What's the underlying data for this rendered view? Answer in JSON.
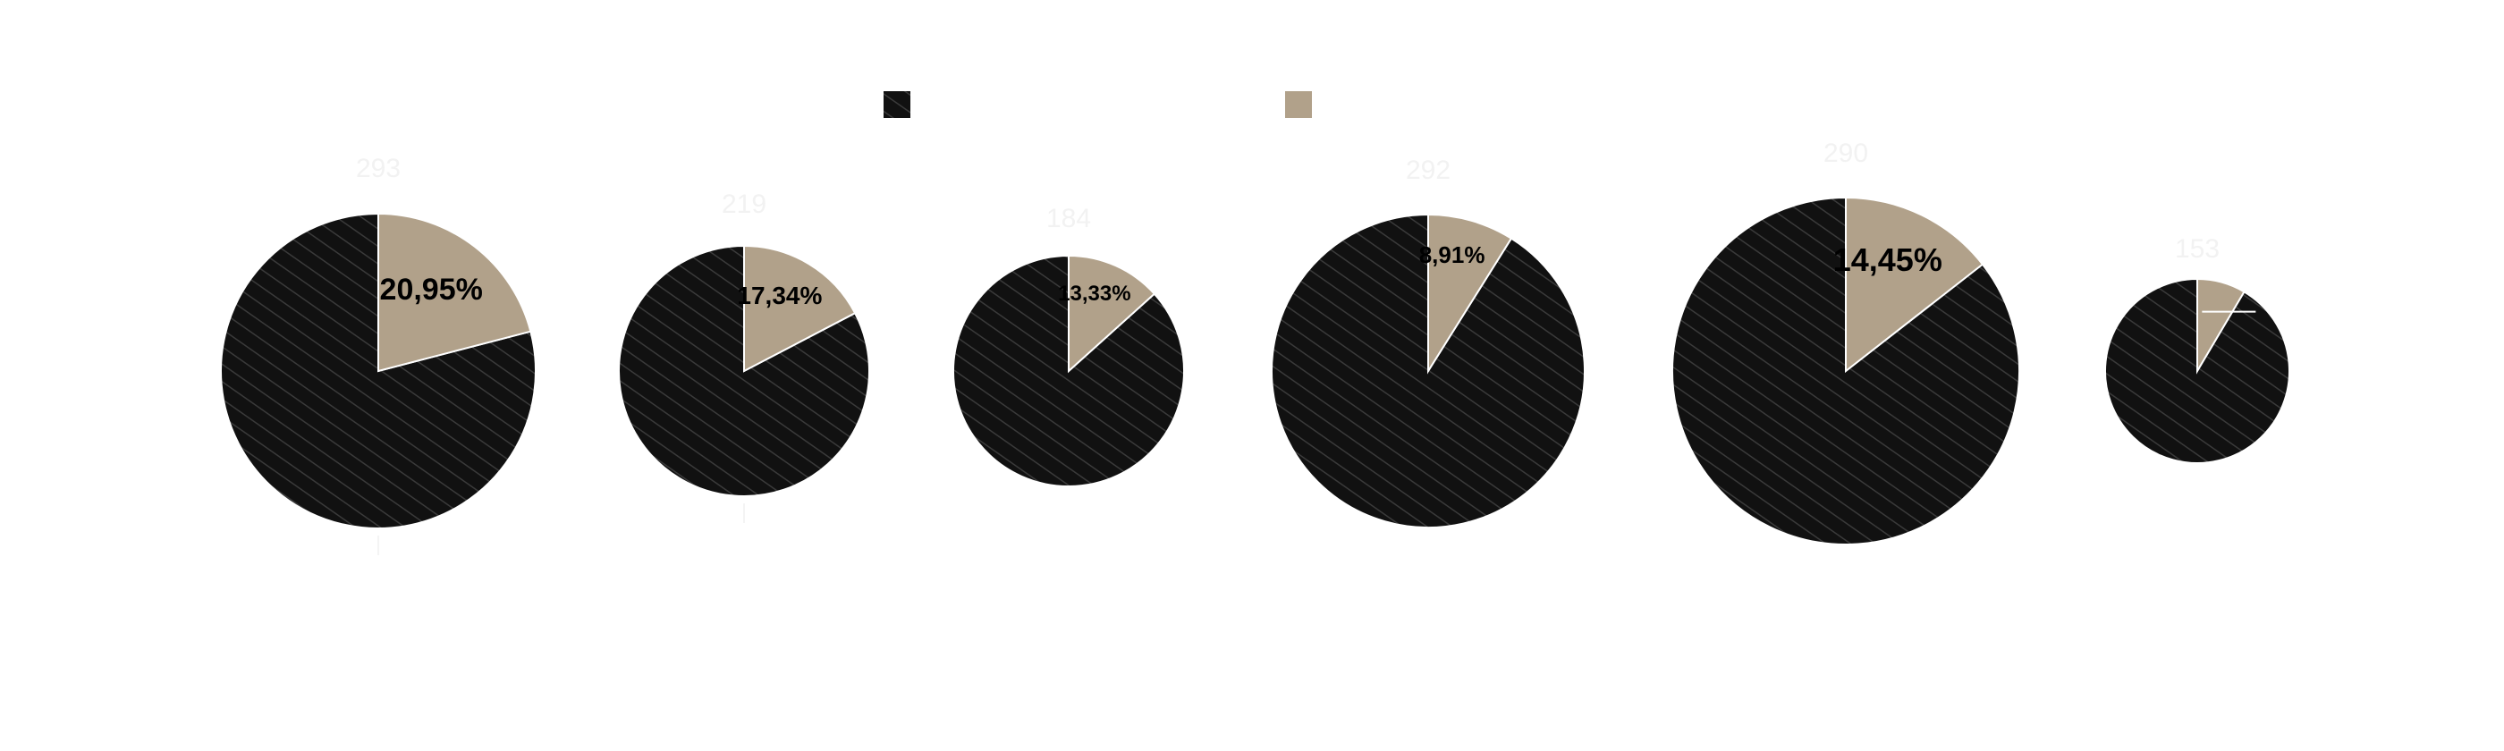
{
  "chart_data": {
    "type": "pie",
    "title": "",
    "legend": {
      "placement": "top-center",
      "entries": [
        {
          "key": "dark",
          "label": "",
          "color": "#111111",
          "hatched": true
        },
        {
          "key": "light",
          "label": "",
          "color": "#b1a18a",
          "hatched": false
        }
      ]
    },
    "pies": [
      {
        "total": "293",
        "light_share": 20.95,
        "label": "20,95%"
      },
      {
        "total": "219",
        "light_share": 17.34,
        "label": "17,34%"
      },
      {
        "total": "184",
        "light_share": 13.33,
        "label": "13,33%"
      },
      {
        "total": "292",
        "light_share": 8.91,
        "label": "8,91%"
      },
      {
        "total": "290",
        "light_share": 14.45,
        "label": "14,45%"
      },
      {
        "total": "153",
        "light_share": 8.5,
        "label": ""
      }
    ]
  },
  "colors": {
    "dark_slice": "#111111",
    "hatch_line": "#3a3a3a",
    "light_slice": "#b1a18a",
    "slice_border": "#ffffff",
    "faint_text": "#f2f2f2"
  }
}
